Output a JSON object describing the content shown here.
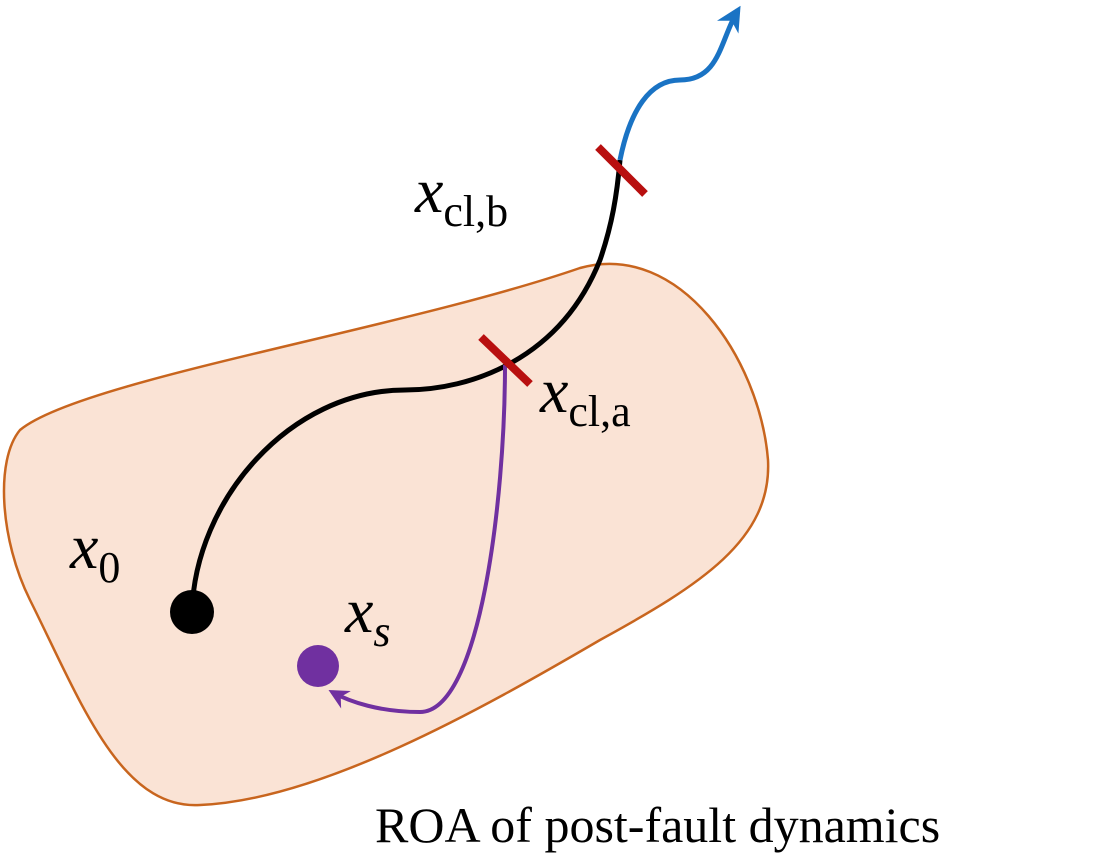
{
  "labels": [
    {
      "base": "x",
      "sub": "0"
    },
    {
      "base": "x",
      "sub": "cl,b"
    },
    {
      "base": "x",
      "sub": "cl,a"
    },
    {
      "base": "x",
      "sub": "s"
    }
  ],
  "caption": "ROA of post-fault dynamics"
}
